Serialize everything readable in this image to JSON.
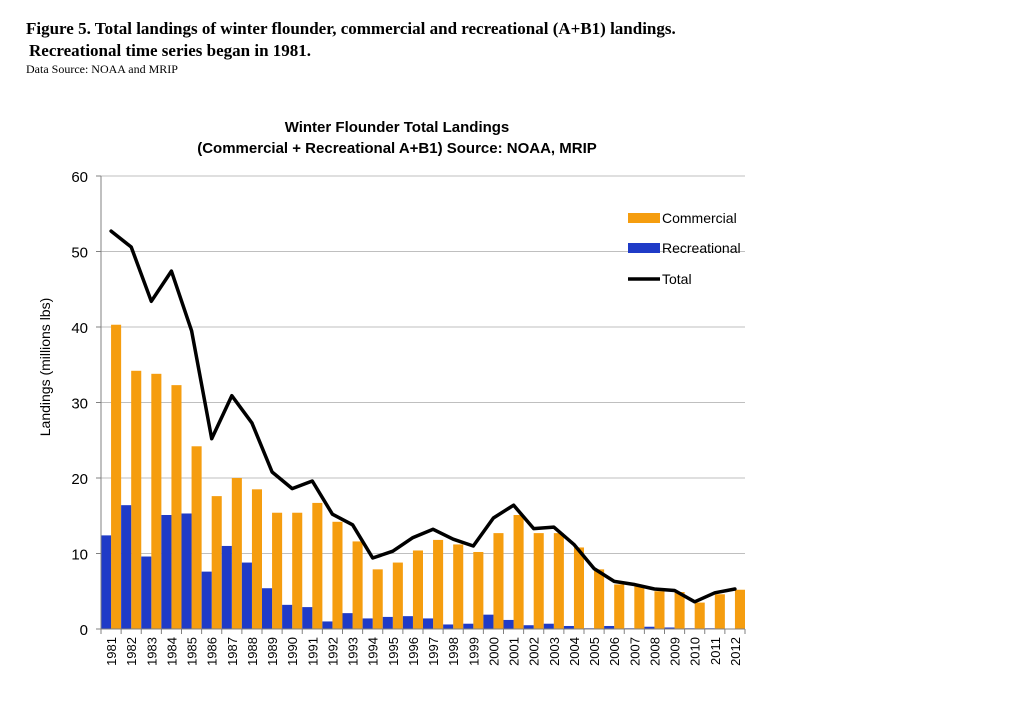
{
  "figure": {
    "caption_line1": "Figure 5. Total landings of winter flounder, commercial and recreational (A+B1) landings.",
    "caption_line2": "Recreational time series began in 1981.",
    "source_note": "Data Source: NOAA and MRIP"
  },
  "chart_data": {
    "type": "bar",
    "title": "Winter Flounder Total Landings",
    "subtitle": "(Commercial + Recreational A+B1)  Source: NOAA,  MRIP",
    "ylabel": "Landings (millions lbs)",
    "xlabel": "",
    "ylim": [
      0,
      60
    ],
    "yticks": [
      0,
      10,
      20,
      30,
      40,
      50,
      60
    ],
    "grid": true,
    "legend_placement": "top-right",
    "categories": [
      "1981",
      "1982",
      "1983",
      "1984",
      "1985",
      "1986",
      "1987",
      "1988",
      "1989",
      "1990",
      "1991",
      "1992",
      "1993",
      "1994",
      "1995",
      "1996",
      "1997",
      "1998",
      "1999",
      "2000",
      "2001",
      "2002",
      "2003",
      "2004",
      "2005",
      "2006",
      "2007",
      "2008",
      "2009",
      "2010",
      "2011",
      "2012"
    ],
    "series": [
      {
        "name": "Commercial",
        "kind": "bar",
        "color": "#F59D0F",
        "values": [
          40.3,
          34.2,
          33.8,
          32.3,
          24.2,
          17.6,
          20.0,
          18.5,
          15.4,
          15.4,
          16.7,
          14.2,
          11.6,
          7.9,
          8.8,
          10.4,
          11.8,
          11.2,
          10.2,
          12.7,
          15.1,
          12.7,
          12.7,
          10.8,
          7.9,
          5.9,
          5.7,
          5.0,
          4.9,
          3.5,
          4.6,
          5.2
        ]
      },
      {
        "name": "Recreational",
        "kind": "bar",
        "color": "#1F3BC7",
        "values": [
          12.4,
          16.4,
          9.6,
          15.1,
          15.3,
          7.6,
          11.0,
          8.8,
          5.4,
          3.2,
          2.9,
          1.0,
          2.1,
          1.4,
          1.6,
          1.7,
          1.4,
          0.6,
          0.7,
          1.9,
          1.2,
          0.5,
          0.7,
          0.4,
          0.1,
          0.4,
          0.1,
          0.3,
          0.2,
          0.1,
          0.1,
          0.0
        ]
      },
      {
        "name": "Total",
        "kind": "line",
        "color": "#000000",
        "values": [
          52.7,
          50.6,
          43.4,
          47.4,
          39.5,
          25.2,
          30.9,
          27.3,
          20.8,
          18.6,
          19.6,
          15.2,
          13.8,
          9.4,
          10.3,
          12.1,
          13.2,
          11.9,
          11.0,
          14.7,
          16.4,
          13.3,
          13.5,
          11.2,
          8.0,
          6.3,
          5.9,
          5.3,
          5.1,
          3.6,
          4.8,
          5.3
        ]
      }
    ]
  }
}
